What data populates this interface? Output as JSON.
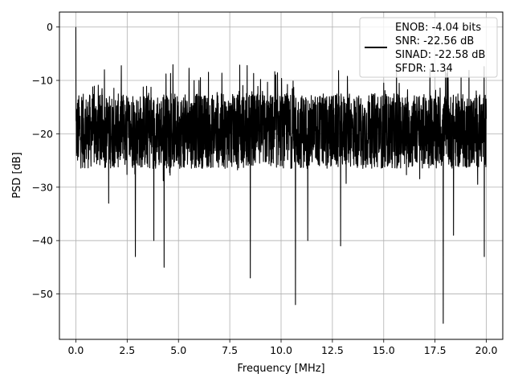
{
  "chart_data": {
    "type": "line",
    "xlabel": "Frequency [MHz]",
    "ylabel": "PSD [dB]",
    "xlim": [
      -0.8,
      20.8
    ],
    "ylim": [
      -58.5,
      2.8
    ],
    "x_ticks": [
      0.0,
      2.5,
      5.0,
      7.5,
      10.0,
      12.5,
      15.0,
      17.5,
      20.0
    ],
    "x_tick_labels": [
      "0.0",
      "2.5",
      "5.0",
      "7.5",
      "10.0",
      "12.5",
      "15.0",
      "17.5",
      "20.0"
    ],
    "y_ticks": [
      0,
      -10,
      -20,
      -30,
      -40,
      -50
    ],
    "y_tick_labels": [
      "0",
      "−10",
      "−20",
      "−30",
      "−40",
      "−50"
    ],
    "grid": true,
    "legend_position": "upper-right",
    "series": [
      {
        "color": "#000000",
        "x": [
          0.0,
          0.03,
          0.06,
          0.1,
          0.2,
          0.5,
          1.0,
          1.5,
          1.6,
          2.0,
          2.5,
          2.9,
          3.0,
          3.5,
          3.8,
          4.0,
          4.3,
          4.5,
          5.0,
          5.5,
          6.0,
          6.5,
          7.0,
          7.5,
          8.0,
          8.5,
          9.0,
          9.5,
          10.0,
          10.5,
          10.7,
          11.0,
          11.3,
          11.5,
          12.0,
          12.5,
          12.9,
          13.0,
          13.5,
          14.0,
          14.5,
          15.0,
          15.5,
          16.0,
          16.5,
          17.0,
          17.5,
          17.9,
          18.0,
          18.4,
          18.5,
          19.0,
          19.5,
          19.9,
          20.0
        ],
        "y": [
          0.0,
          -27.5,
          -9.0,
          -20.0,
          -18.0,
          -22.0,
          -16.0,
          -24.0,
          -33.0,
          -19.0,
          -17.0,
          -43.0,
          -21.0,
          -18.0,
          -40.0,
          -20.0,
          -45.0,
          -19.0,
          -17.0,
          -21.0,
          -18.0,
          -20.0,
          -19.0,
          -22.0,
          -18.0,
          -47.0,
          -20.0,
          -19.0,
          -18.0,
          -21.0,
          -52.0,
          -18.0,
          -40.0,
          -20.0,
          -19.0,
          -18.0,
          -41.0,
          -20.0,
          -19.0,
          -21.0,
          -18.0,
          -20.0,
          -19.0,
          -22.0,
          -18.0,
          -20.0,
          -19.0,
          -55.5,
          -21.0,
          -39.0,
          -19.0,
          -20.0,
          -18.0,
          -43.0,
          -15.0
        ]
      }
    ],
    "legend": {
      "lines": [
        "ENOB: -4.04 bits",
        "SNR: -22.56 dB",
        "SINAD: -22.58 dB",
        "SFDR: 1.34"
      ]
    }
  }
}
